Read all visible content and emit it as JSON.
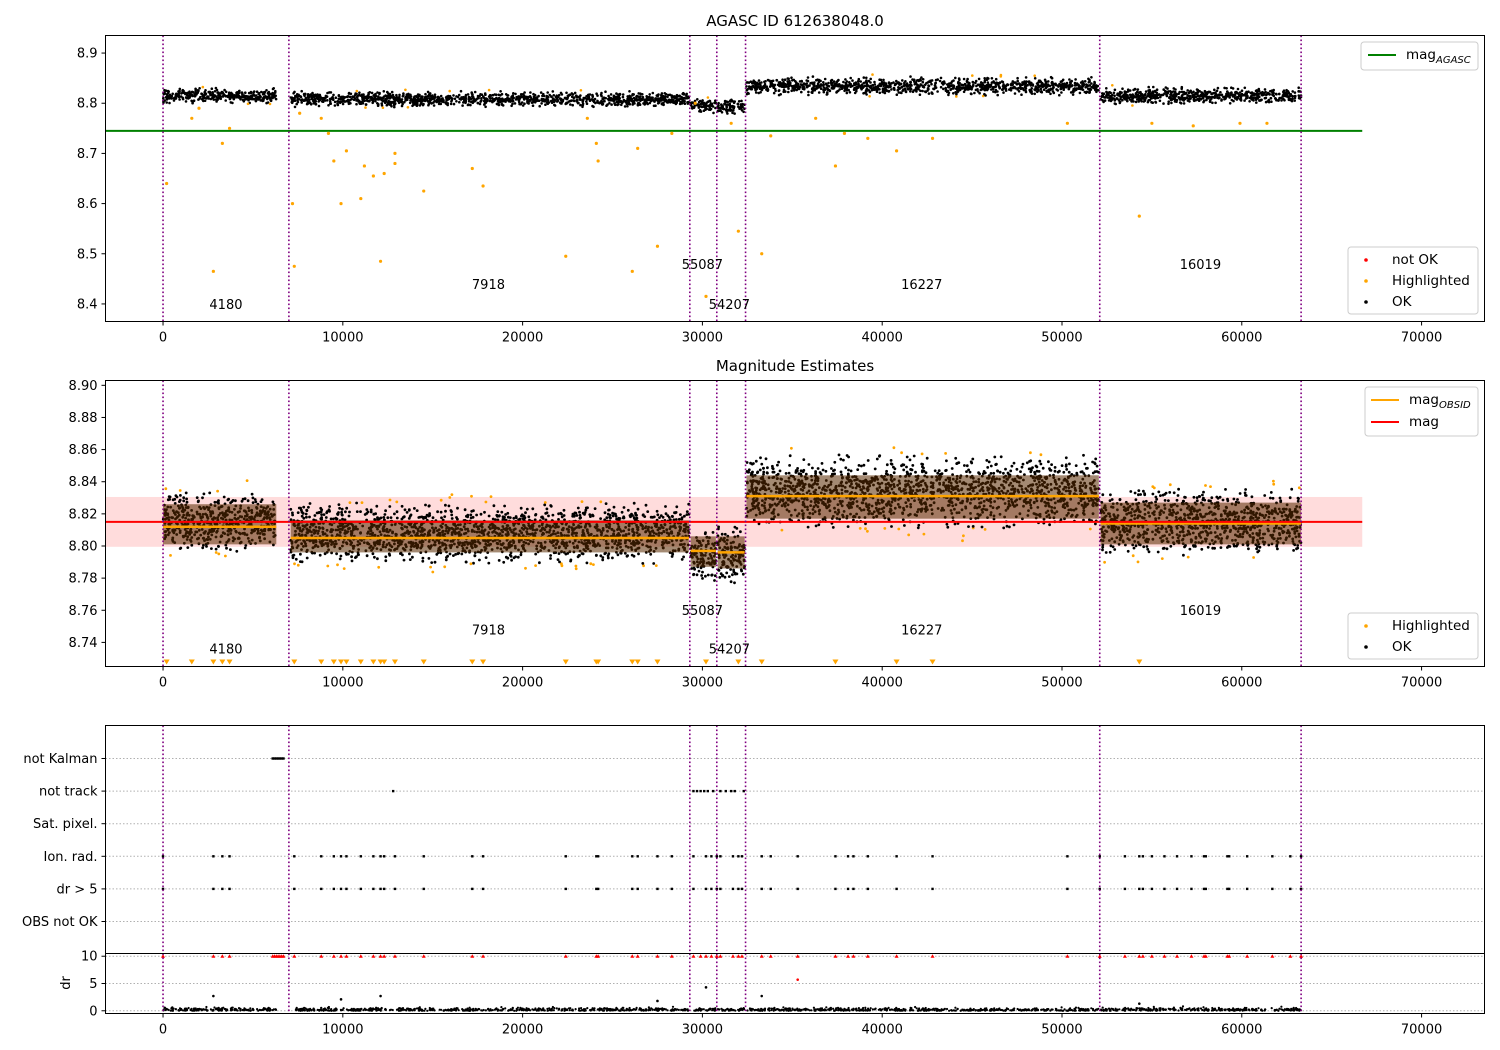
{
  "colors": {
    "highlighted": "#ffa500",
    "ok": "#000000",
    "not_ok": "#ff0000",
    "agasc_line": "#008000",
    "obs_mag": "#ffa500",
    "mean_mag": "#ff0000",
    "band": "#ffd6d6",
    "obsid_boundary": "#800080",
    "grid": "#b0b0b0"
  },
  "chart_data": [
    {
      "type": "scatter",
      "title": "AGASC ID 612638048.0",
      "xlim": [
        -3200,
        73500
      ],
      "ylim": [
        8.365,
        8.935
      ],
      "xticks": [
        0,
        10000,
        20000,
        30000,
        40000,
        50000,
        60000,
        70000
      ],
      "yticks": [
        8.4,
        8.5,
        8.6,
        8.7,
        8.8,
        8.9
      ],
      "obsid_boundaries": [
        0,
        7000,
        29300,
        30800,
        32400,
        52100,
        63300
      ],
      "obsid_labels": [
        {
          "text": "4180",
          "x": 3500,
          "y": 8.39
        },
        {
          "text": "7918",
          "x": 18100,
          "y": 8.43
        },
        {
          "text": "55087",
          "x": 30000,
          "y": 8.47
        },
        {
          "text": "54207",
          "x": 31500,
          "y": 8.39
        },
        {
          "text": "16227",
          "x": 42200,
          "y": 8.43
        },
        {
          "text": "16019",
          "x": 57700,
          "y": 8.47
        }
      ],
      "reference_line": {
        "name": "mag_AGASC",
        "y": 8.745,
        "x_range": [
          -3200,
          66700
        ]
      },
      "segments": [
        {
          "obsid": "4180",
          "x_range": [
            0,
            6300
          ],
          "center": 8.815,
          "spread": 0.02
        },
        {
          "obsid": "7918",
          "x_range": [
            7100,
            29250
          ],
          "center": 8.808,
          "spread": 0.02
        },
        {
          "obsid": "55087",
          "x_range": [
            29350,
            30750
          ],
          "center": 8.795,
          "spread": 0.018
        },
        {
          "obsid": "54207",
          "x_range": [
            30850,
            32350
          ],
          "center": 8.794,
          "spread": 0.02
        },
        {
          "obsid": "16227",
          "x_range": [
            32450,
            52050
          ],
          "center": 8.834,
          "spread": 0.024
        },
        {
          "obsid": "16019",
          "x_range": [
            52150,
            63300
          ],
          "center": 8.815,
          "spread": 0.022
        }
      ],
      "highlighted_outliers": [
        [
          200,
          8.64
        ],
        [
          1600,
          8.77
        ],
        [
          2000,
          8.79
        ],
        [
          2800,
          8.465
        ],
        [
          3300,
          8.72
        ],
        [
          3700,
          8.75
        ],
        [
          7200,
          8.6
        ],
        [
          7300,
          8.475
        ],
        [
          7600,
          8.78
        ],
        [
          8800,
          8.77
        ],
        [
          9200,
          8.74
        ],
        [
          9500,
          8.685
        ],
        [
          9900,
          8.6
        ],
        [
          10200,
          8.705
        ],
        [
          11000,
          8.61
        ],
        [
          11200,
          8.675
        ],
        [
          11700,
          8.655
        ],
        [
          12100,
          8.485
        ],
        [
          12300,
          8.66
        ],
        [
          12900,
          8.68
        ],
        [
          12900,
          8.7
        ],
        [
          14500,
          8.625
        ],
        [
          17200,
          8.67
        ],
        [
          17800,
          8.635
        ],
        [
          22400,
          8.495
        ],
        [
          23600,
          8.77
        ],
        [
          24100,
          8.72
        ],
        [
          24200,
          8.685
        ],
        [
          26100,
          8.465
        ],
        [
          26400,
          8.71
        ],
        [
          27500,
          8.515
        ],
        [
          28300,
          8.74
        ],
        [
          29600,
          8.8
        ],
        [
          30200,
          8.415
        ],
        [
          31600,
          8.76
        ],
        [
          32000,
          8.545
        ],
        [
          33300,
          8.5
        ],
        [
          33800,
          8.735
        ],
        [
          36300,
          8.77
        ],
        [
          37400,
          8.675
        ],
        [
          37900,
          8.74
        ],
        [
          39200,
          8.73
        ],
        [
          40800,
          8.705
        ],
        [
          42800,
          8.73
        ],
        [
          50300,
          8.76
        ],
        [
          54300,
          8.575
        ],
        [
          55000,
          8.76
        ],
        [
          57300,
          8.755
        ],
        [
          59900,
          8.76
        ],
        [
          61400,
          8.76
        ]
      ],
      "legend": [
        "mag_AGASC",
        "not OK",
        "Highlighted",
        "OK"
      ]
    },
    {
      "type": "scatter",
      "title": "Magnitude Estimates",
      "xlim": [
        -3200,
        73500
      ],
      "ylim": [
        8.725,
        8.903
      ],
      "xticks": [
        0,
        10000,
        20000,
        30000,
        40000,
        50000,
        60000,
        70000
      ],
      "yticks": [
        8.74,
        8.76,
        8.78,
        8.8,
        8.82,
        8.84,
        8.86,
        8.88,
        8.9
      ],
      "mean_mag": 8.815,
      "mean_mag_band": [
        8.7995,
        8.8305
      ],
      "obs_mags": [
        {
          "obsid": "4180",
          "x_range": [
            0,
            6300
          ],
          "mag": 8.812,
          "band": [
            8.801,
            8.826
          ]
        },
        {
          "obsid": "7918",
          "x_range": [
            7100,
            29250
          ],
          "mag": 8.805,
          "band": [
            8.796,
            8.816
          ]
        },
        {
          "obsid": "55087",
          "x_range": [
            29350,
            30750
          ],
          "mag": 8.797,
          "band": [
            8.787,
            8.806
          ]
        },
        {
          "obsid": "54207",
          "x_range": [
            30850,
            32350
          ],
          "mag": 8.796,
          "band": [
            8.786,
            8.806
          ]
        },
        {
          "obsid": "16227",
          "x_range": [
            32450,
            52050
          ],
          "mag": 8.831,
          "band": [
            8.817,
            8.844
          ]
        },
        {
          "obsid": "16019",
          "x_range": [
            52150,
            63300
          ],
          "mag": 8.814,
          "band": [
            8.801,
            8.827
          ]
        }
      ],
      "obsid_labels": [
        {
          "text": "4180",
          "x": 3500,
          "y": 8.733
        },
        {
          "text": "7918",
          "x": 18100,
          "y": 8.745
        },
        {
          "text": "55087",
          "x": 30000,
          "y": 8.757
        },
        {
          "text": "54207",
          "x": 31500,
          "y": 8.733
        },
        {
          "text": "16227",
          "x": 42200,
          "y": 8.745
        },
        {
          "text": "16019",
          "x": 57700,
          "y": 8.757
        }
      ],
      "clipped_low_markers_x": [
        200,
        1600,
        2800,
        3300,
        3700,
        7300,
        8800,
        9500,
        9900,
        10200,
        11000,
        11700,
        12100,
        12300,
        12900,
        14500,
        17200,
        17800,
        22400,
        24100,
        24200,
        26100,
        26400,
        27500,
        30200,
        32000,
        33300,
        37400,
        40800,
        42800,
        54300
      ],
      "legend": [
        "mag_OBSID",
        "mag",
        "Highlighted",
        "OK"
      ]
    },
    {
      "type": "scatter",
      "title": "",
      "xlim": [
        -3200,
        73500
      ],
      "xticks": [
        0,
        10000,
        20000,
        30000,
        40000,
        50000,
        60000,
        70000
      ],
      "flag_categories": [
        "not Kalman",
        "not track",
        "Sat. pixel.",
        "Ion. rad.",
        "dr > 5",
        "OBS not OK"
      ],
      "flags": {
        "not Kalman": [
          6100,
          6200,
          6300,
          6400,
          6500,
          6600,
          6700
        ],
        "not track": [
          12800,
          29500,
          29700,
          29900,
          30100,
          30300,
          30600,
          31000,
          31300,
          31600,
          31800,
          32300
        ],
        "Sat. pixel.": [],
        "Ion. rad.": [
          0,
          2800,
          3300,
          3700,
          7300,
          8800,
          9500,
          9900,
          10200,
          11000,
          11700,
          12100,
          12300,
          12900,
          14500,
          17200,
          17800,
          22400,
          24100,
          24200,
          26100,
          26400,
          27500,
          28300,
          29500,
          30200,
          30500,
          30800,
          31000,
          31700,
          32000,
          32200,
          33300,
          33800,
          35300,
          37400,
          38100,
          38400,
          39200,
          40800,
          42800,
          50300,
          52100,
          53500,
          54300,
          54500,
          55000,
          55700,
          56400,
          57200,
          57900,
          58000,
          59200,
          59300,
          60300,
          61700,
          62700,
          63300
        ],
        "dr > 5": [
          0,
          2800,
          3300,
          3700,
          7300,
          8800,
          9500,
          9900,
          10200,
          11000,
          11700,
          12100,
          12300,
          12900,
          14500,
          17200,
          17800,
          22400,
          24100,
          24200,
          26100,
          26400,
          27500,
          28300,
          29500,
          30200,
          30500,
          30800,
          31000,
          31700,
          32000,
          32200,
          33300,
          33800,
          35300,
          37400,
          38100,
          38400,
          39200,
          40800,
          42800,
          50300,
          52100,
          53500,
          54300,
          54500,
          55000,
          55700,
          56400,
          57200,
          57900,
          58000,
          59200,
          59300,
          60300,
          61700,
          62700,
          63300
        ],
        "OBS not OK": []
      }
    },
    {
      "type": "scatter",
      "title": "",
      "ylabel": "dr",
      "xlim": [
        -3200,
        73500
      ],
      "ylim": [
        -0.5,
        10.5
      ],
      "xticks": [
        0,
        10000,
        20000,
        30000,
        40000,
        50000,
        60000,
        70000
      ],
      "yticks": [
        0,
        5,
        10
      ],
      "capped_points_x": [
        0,
        2800,
        3300,
        3700,
        6100,
        6200,
        6300,
        6400,
        6500,
        6600,
        6700,
        7300,
        8800,
        9500,
        9900,
        10200,
        11000,
        11700,
        12100,
        12300,
        12900,
        14500,
        17200,
        17800,
        22400,
        24100,
        24200,
        26100,
        26400,
        27500,
        28300,
        29500,
        29900,
        30200,
        30500,
        30800,
        31000,
        31700,
        32000,
        32200,
        33300,
        33800,
        35300,
        37400,
        38100,
        38400,
        39200,
        40800,
        42800,
        50300,
        52100,
        53500,
        54300,
        54500,
        55000,
        55700,
        56400,
        57200,
        57900,
        58000,
        59200,
        59300,
        60300,
        61700,
        62700,
        63300
      ],
      "notable_points": [
        [
          35300,
          5.7
        ],
        [
          30200,
          4.3
        ],
        [
          2800,
          2.7
        ],
        [
          12100,
          2.7
        ],
        [
          33300,
          2.7
        ],
        [
          27500,
          1.8
        ],
        [
          9900,
          2.1
        ],
        [
          54300,
          1.3
        ]
      ]
    }
  ]
}
